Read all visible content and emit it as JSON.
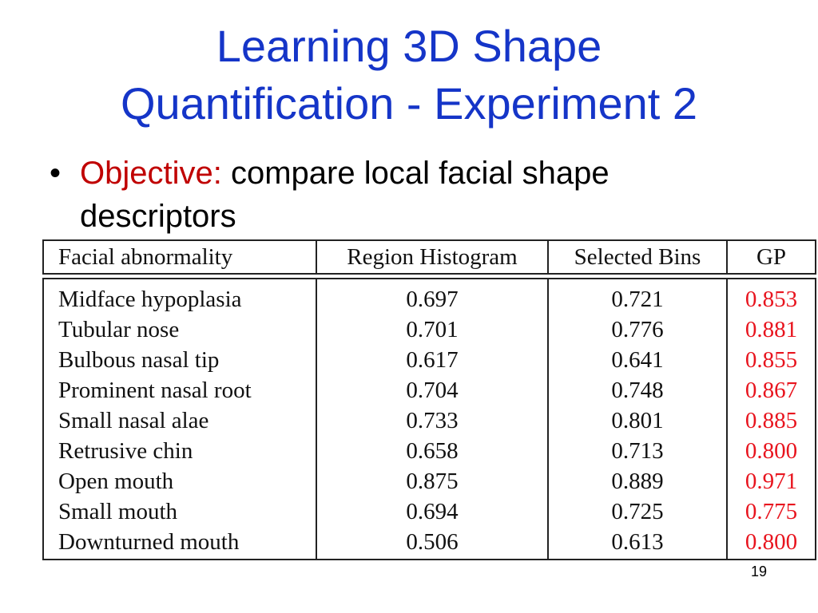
{
  "slide": {
    "title_line1": "Learning 3D Shape",
    "title_line2": "Quantification - Experiment 2",
    "bullet_marker": "•",
    "objective_label": "Objective:",
    "objective_text": " compare local facial shape descriptors",
    "page_number": "19"
  },
  "table": {
    "headers": [
      "Facial abnormality",
      "Region Histogram",
      "Selected Bins",
      "GP"
    ],
    "rows": [
      [
        "Midface hypoplasia",
        "0.697",
        "0.721",
        "0.853"
      ],
      [
        "Tubular nose",
        "0.701",
        "0.776",
        "0.881"
      ],
      [
        "Bulbous nasal tip",
        "0.617",
        "0.641",
        "0.855"
      ],
      [
        "Prominent nasal root",
        "0.704",
        "0.748",
        "0.867"
      ],
      [
        "Small nasal alae",
        "0.733",
        "0.801",
        "0.885"
      ],
      [
        "Retrusive chin",
        "0.658",
        "0.713",
        "0.800"
      ],
      [
        "Open mouth",
        "0.875",
        "0.889",
        "0.971"
      ],
      [
        "Small mouth",
        "0.694",
        "0.725",
        "0.775"
      ],
      [
        "Downturned mouth",
        "0.506",
        "0.613",
        "0.800"
      ]
    ]
  },
  "colors": {
    "title": "#1535c8",
    "objective_label": "#c00000",
    "gp_values": "#e8141e"
  }
}
